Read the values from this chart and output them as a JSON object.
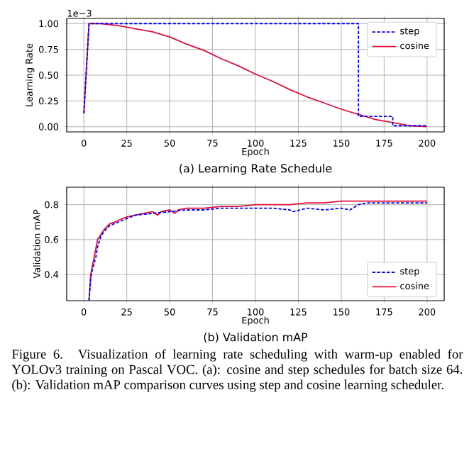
{
  "chart_data": [
    {
      "type": "line",
      "title": "(a) Learning Rate Schedule",
      "xlabel": "Epoch",
      "ylabel": "Learning Rate",
      "annotations": [
        "1e−3"
      ],
      "xlim": [
        -10,
        210
      ],
      "ylim": [
        -0.05,
        1.05
      ],
      "xticks": [
        0,
        25,
        50,
        75,
        100,
        125,
        150,
        175,
        200
      ],
      "yticks": [
        {
          "value": 0,
          "label": "0.00"
        },
        {
          "value": 0.25,
          "label": "0.25"
        },
        {
          "value": 0.5,
          "label": "0.50"
        },
        {
          "value": 0.75,
          "label": "0.75"
        },
        {
          "value": 1,
          "label": "1.00"
        }
      ],
      "grid": true,
      "legend": "top right",
      "series": [
        {
          "name": "step",
          "color": "#0000ff",
          "line_style": "dashed",
          "x": [
            0,
            3,
            160,
            160,
            180,
            180,
            200
          ],
          "values": [
            0.13,
            1.0,
            1.0,
            0.1,
            0.1,
            0.01,
            0.01
          ]
        },
        {
          "name": "cosine",
          "color": "#e0103a",
          "line_style": "solid",
          "x": [
            0,
            3,
            10,
            20,
            30,
            40,
            50,
            60,
            70,
            80,
            90,
            100,
            110,
            120,
            130,
            140,
            150,
            160,
            170,
            180,
            190,
            200
          ],
          "values": [
            0.13,
            1.0,
            1.0,
            0.98,
            0.95,
            0.92,
            0.87,
            0.8,
            0.74,
            0.66,
            0.59,
            0.51,
            0.44,
            0.36,
            0.29,
            0.23,
            0.17,
            0.12,
            0.07,
            0.04,
            0.01,
            0.0
          ]
        }
      ]
    },
    {
      "type": "line",
      "title": "(b) Validation mAP",
      "xlabel": "Epoch",
      "ylabel": "Validation mAP",
      "annotations": [
        "Figure 6. Visualization of learning rate scheduling with warm-up enabled for YOLOv3 training on Pascal VOC. (a): cosine and step schedules for batch size 64. (b): Validation mAP comparison curves using step and cosine learning scheduler."
      ],
      "xlim": [
        -10,
        210
      ],
      "ylim": [
        0.25,
        0.9
      ],
      "xticks": [
        0,
        25,
        50,
        75,
        100,
        125,
        150,
        175,
        200
      ],
      "yticks": [
        0.4,
        0.6,
        0.8
      ],
      "grid": true,
      "legend": "bottom right",
      "series": [
        {
          "name": "step",
          "color": "#0000ff",
          "line_style": "dashed",
          "x": [
            3,
            4,
            5,
            7,
            8,
            10,
            12,
            15,
            20,
            25,
            30,
            40,
            50,
            60,
            70,
            80,
            90,
            100,
            110,
            120,
            122,
            130,
            140,
            150,
            155,
            160,
            165,
            170,
            180,
            190,
            200
          ],
          "values": [
            0.25,
            0.38,
            0.43,
            0.5,
            0.56,
            0.62,
            0.65,
            0.68,
            0.7,
            0.72,
            0.74,
            0.75,
            0.76,
            0.77,
            0.77,
            0.78,
            0.78,
            0.78,
            0.78,
            0.77,
            0.76,
            0.78,
            0.77,
            0.78,
            0.77,
            0.8,
            0.81,
            0.81,
            0.81,
            0.81,
            0.81
          ]
        },
        {
          "name": "cosine",
          "color": "#e0103a",
          "line_style": "solid",
          "x": [
            3,
            4,
            5,
            7,
            8,
            10,
            12,
            15,
            18,
            20,
            25,
            30,
            35,
            40,
            43,
            45,
            50,
            53,
            55,
            60,
            70,
            80,
            90,
            100,
            110,
            120,
            130,
            140,
            150,
            160,
            170,
            180,
            190,
            200
          ],
          "values": [
            0.25,
            0.4,
            0.45,
            0.55,
            0.6,
            0.63,
            0.66,
            0.69,
            0.7,
            0.71,
            0.73,
            0.74,
            0.75,
            0.76,
            0.74,
            0.76,
            0.77,
            0.75,
            0.77,
            0.78,
            0.78,
            0.79,
            0.79,
            0.8,
            0.8,
            0.8,
            0.81,
            0.81,
            0.82,
            0.82,
            0.82,
            0.82,
            0.82,
            0.82
          ]
        }
      ]
    }
  ]
}
